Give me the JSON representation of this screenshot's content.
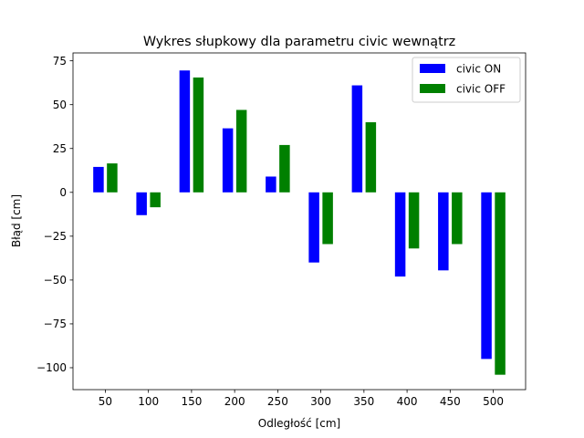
{
  "chart_data": {
    "type": "bar",
    "title": "Wykres słupkowy dla parametru civic wewnątrz",
    "xlabel": "Odległość [cm]",
    "ylabel": "Błąd [cm]",
    "categories": [
      "50",
      "100",
      "150",
      "200",
      "250",
      "300",
      "350",
      "400",
      "450",
      "500"
    ],
    "series": [
      {
        "name": "civic ON",
        "color": "#0000ff",
        "values": [
          14.5,
          -13,
          69.5,
          36.5,
          9,
          -40,
          61,
          -48,
          -44.5,
          -95
        ]
      },
      {
        "name": "civic OFF",
        "color": "#008000",
        "values": [
          16.5,
          -8.5,
          65.5,
          47,
          27,
          -29.5,
          40,
          -32,
          -29.5,
          -104
        ]
      }
    ],
    "ylim": [
      -112.5,
      79.5
    ],
    "yticks": [
      -100,
      -75,
      -50,
      -25,
      0,
      25,
      50,
      75
    ],
    "ytick_labels": [
      "−100",
      "−75",
      "−50",
      "−25",
      "0",
      "25",
      "50",
      "75"
    ],
    "grid": false,
    "legend_position": "upper-right"
  }
}
